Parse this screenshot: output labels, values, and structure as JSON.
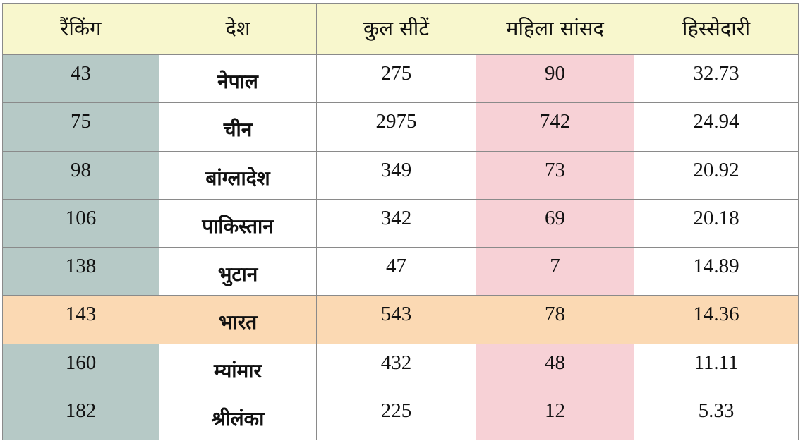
{
  "table": {
    "headers": [
      "रैंकिंग",
      "देश",
      "कुल सीटें",
      "महिला सांसद",
      "हिस्सेदारी"
    ],
    "rows": [
      {
        "rank": "43",
        "country": "नेपाल",
        "total_seats": "275",
        "women_mps": "90",
        "share": "32.73"
      },
      {
        "rank": "75",
        "country": "चीन",
        "total_seats": "2975",
        "women_mps": "742",
        "share": "24.94"
      },
      {
        "rank": "98",
        "country": "बांग्लादेश",
        "total_seats": "349",
        "women_mps": "73",
        "share": "20.92"
      },
      {
        "rank": "106",
        "country": "पाकिस्तान",
        "total_seats": "342",
        "women_mps": "69",
        "share": "20.18"
      },
      {
        "rank": "138",
        "country": "भुटान",
        "total_seats": "47",
        "women_mps": "7",
        "share": "14.89"
      },
      {
        "rank": "143",
        "country": "भारत",
        "total_seats": "543",
        "women_mps": "78",
        "share": "14.36"
      },
      {
        "rank": "160",
        "country": "म्यांमार",
        "total_seats": "432",
        "women_mps": "48",
        "share": "11.11"
      },
      {
        "rank": "182",
        "country": "श्रीलंका",
        "total_seats": "225",
        "women_mps": "12",
        "share": "5.33"
      }
    ]
  },
  "colors": {
    "header_bg": "#f8f7cd",
    "rank_col_bg": "#b6c9c6",
    "women_col_bg": "#f7d1d6",
    "highlight_row_bg": "#fbd9b3",
    "border": "#8a8a8a"
  },
  "highlighted_country": "भारत"
}
